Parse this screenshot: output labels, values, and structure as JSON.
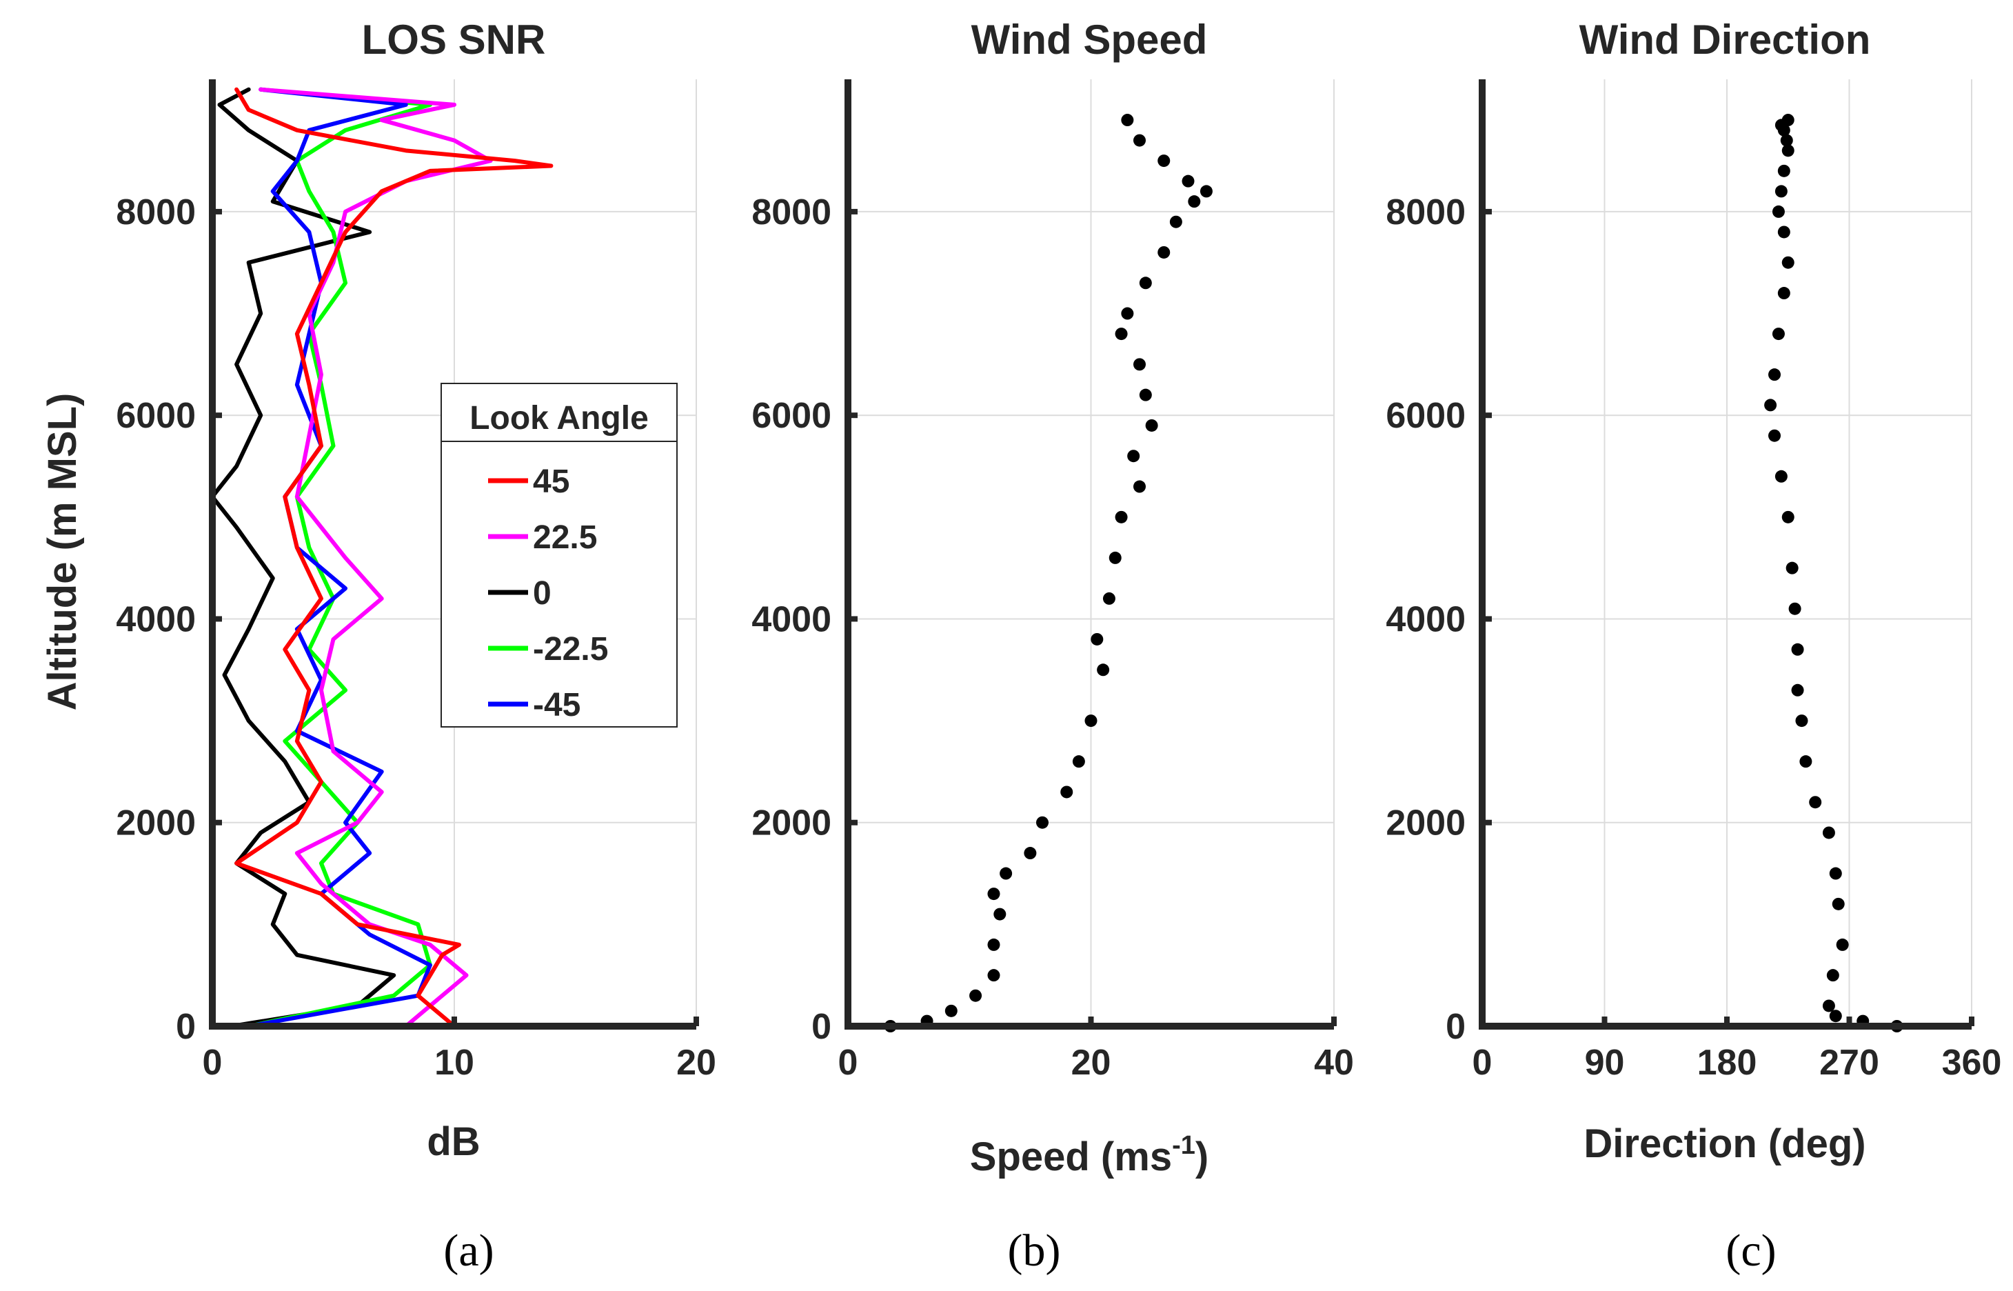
{
  "figure": {
    "captions": [
      "(a)",
      "(b)",
      "(c)"
    ]
  },
  "chart_data": [
    {
      "type": "line",
      "title": "LOS SNR",
      "xlabel": "dB",
      "ylabel": "Altitude (m MSL)",
      "xlim": [
        0,
        20
      ],
      "ylim": [
        0,
        9300
      ],
      "xticks": [
        0,
        10,
        20
      ],
      "yticks": [
        0,
        2000,
        4000,
        6000,
        8000
      ],
      "legend": {
        "title": "Look Angle",
        "position": "center-right"
      },
      "series": [
        {
          "name": "45",
          "color": "#ff0000",
          "altitude": [
            0,
            300,
            700,
            800,
            1000,
            1300,
            1600,
            2000,
            2400,
            2800,
            3300,
            3700,
            4200,
            4700,
            5200,
            5700,
            6300,
            6800,
            7300,
            7800,
            8200,
            8400,
            8450,
            8500,
            8600,
            8800,
            9000,
            9200
          ],
          "snr": [
            10.0,
            8.5,
            9.5,
            10.2,
            6.0,
            4.5,
            1.0,
            3.5,
            4.5,
            3.5,
            4.0,
            3.0,
            4.5,
            3.5,
            3.0,
            4.5,
            4.0,
            3.5,
            4.5,
            5.5,
            7.0,
            9.0,
            14.0,
            12.5,
            8.0,
            3.5,
            1.5,
            1.0
          ]
        },
        {
          "name": "22.5",
          "color": "#ff00ff",
          "altitude": [
            0,
            200,
            500,
            800,
            1000,
            1400,
            1700,
            2000,
            2300,
            2700,
            3300,
            3800,
            4200,
            4600,
            5200,
            5800,
            6400,
            7000,
            7500,
            8000,
            8300,
            8500,
            8700,
            8900,
            9050,
            9200
          ],
          "snr": [
            8.0,
            9.0,
            10.5,
            9.0,
            6.5,
            4.5,
            3.5,
            6.0,
            7.0,
            5.0,
            4.5,
            5.0,
            7.0,
            5.5,
            3.5,
            4.0,
            4.5,
            4.0,
            5.0,
            5.5,
            8.0,
            11.5,
            10.0,
            7.0,
            10.0,
            2.0
          ]
        },
        {
          "name": "0",
          "color": "#000000",
          "altitude": [
            0,
            200,
            500,
            700,
            1000,
            1300,
            1600,
            1900,
            2200,
            2600,
            3000,
            3450,
            3900,
            4400,
            4900,
            5200,
            5500,
            6000,
            6500,
            7000,
            7500,
            7800,
            8100,
            8500,
            8800,
            9050,
            9200
          ],
          "snr": [
            0.8,
            6.0,
            7.5,
            3.5,
            2.5,
            3.0,
            1.0,
            2.0,
            4.0,
            3.0,
            1.5,
            0.5,
            1.5,
            2.5,
            1.0,
            0.0,
            1.0,
            2.0,
            1.0,
            2.0,
            1.5,
            6.5,
            2.5,
            3.5,
            1.5,
            0.3,
            1.5
          ]
        },
        {
          "name": "-22.5",
          "color": "#00ff00",
          "altitude": [
            0,
            300,
            600,
            1000,
            1300,
            1600,
            2000,
            2400,
            2800,
            3300,
            3700,
            4200,
            4700,
            5200,
            5700,
            6300,
            6800,
            7300,
            7800,
            8200,
            8500,
            8800,
            9050,
            9200
          ],
          "snr": [
            1.5,
            7.5,
            9.0,
            8.5,
            5.0,
            4.5,
            6.0,
            4.5,
            3.0,
            5.5,
            4.0,
            5.0,
            4.0,
            3.5,
            5.0,
            4.5,
            4.0,
            5.5,
            5.0,
            4.0,
            3.5,
            5.5,
            9.0,
            2.0
          ]
        },
        {
          "name": "-45",
          "color": "#0000ff",
          "altitude": [
            0,
            300,
            600,
            900,
            1300,
            1700,
            2000,
            2500,
            2900,
            3400,
            3900,
            4300,
            4700,
            5200,
            5700,
            6300,
            6800,
            7300,
            7800,
            8200,
            8500,
            8800,
            9050,
            9200
          ],
          "snr": [
            1.5,
            8.5,
            9.0,
            6.5,
            4.5,
            6.5,
            5.5,
            7.0,
            3.5,
            4.5,
            3.5,
            5.5,
            3.5,
            3.0,
            4.5,
            3.5,
            4.0,
            4.5,
            4.0,
            2.5,
            3.5,
            4.0,
            8.0,
            2.0
          ]
        }
      ]
    },
    {
      "type": "scatter",
      "title": "Wind Speed",
      "xlabel": "Speed (ms",
      "xlabel_superscript": "-1",
      "xlabel_suffix": ")",
      "xlim": [
        0,
        40
      ],
      "ylim": [
        0,
        9300
      ],
      "xticks": [
        0,
        20,
        40
      ],
      "yticks": [
        0,
        2000,
        4000,
        6000,
        8000
      ],
      "series": [
        {
          "name": "wind speed",
          "color": "#000000",
          "speed": [
            3.5,
            6.5,
            8.5,
            10.5,
            12.0,
            12.0,
            12.5,
            12.0,
            13.0,
            15.0,
            16.0,
            18.0,
            19.0,
            20.0,
            21.0,
            20.5,
            21.5,
            22.0,
            22.5,
            24.0,
            23.5,
            25.0,
            24.5,
            24.0,
            22.5,
            23.0,
            24.5,
            26.0,
            27.0,
            28.5,
            29.5,
            28.0,
            26.0,
            24.0,
            23.0
          ],
          "altitude": [
            0,
            50,
            150,
            300,
            500,
            800,
            1100,
            1300,
            1500,
            1700,
            2000,
            2300,
            2600,
            3000,
            3500,
            3800,
            4200,
            4600,
            5000,
            5300,
            5600,
            5900,
            6200,
            6500,
            6800,
            7000,
            7300,
            7600,
            7900,
            8100,
            8200,
            8300,
            8500,
            8700,
            8900
          ]
        }
      ]
    },
    {
      "type": "scatter",
      "title": "Wind Direction",
      "xlabel": "Direction (deg)",
      "xlim": [
        0,
        360
      ],
      "ylim": [
        0,
        9300
      ],
      "xticks": [
        0,
        90,
        180,
        270,
        360
      ],
      "yticks": [
        0,
        2000,
        4000,
        6000,
        8000
      ],
      "series": [
        {
          "name": "wind direction",
          "color": "#000000",
          "direction": [
            305,
            280,
            260,
            255,
            258,
            265,
            262,
            260,
            255,
            245,
            238,
            235,
            232,
            232,
            230,
            228,
            225,
            220,
            215,
            212,
            215,
            218,
            222,
            225,
            222,
            218,
            220,
            222,
            225,
            224,
            222,
            220,
            225
          ],
          "altitude": [
            0,
            50,
            100,
            200,
            500,
            800,
            1200,
            1500,
            1900,
            2200,
            2600,
            3000,
            3300,
            3700,
            4100,
            4500,
            5000,
            5400,
            5800,
            6100,
            6400,
            6800,
            7200,
            7500,
            7800,
            8000,
            8200,
            8400,
            8600,
            8700,
            8800,
            8850,
            8900
          ]
        }
      ]
    }
  ]
}
